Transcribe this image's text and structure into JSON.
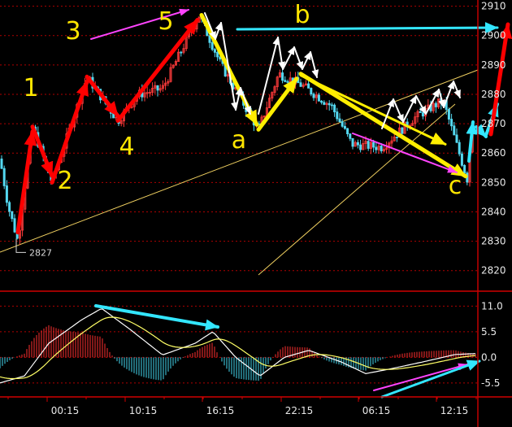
{
  "chart_data": [
    {
      "type": "candlestick",
      "panel": "price",
      "y_ticks": [
        2820,
        2830,
        2840,
        2850,
        2860,
        2870,
        2880,
        2890,
        2900,
        2910
      ],
      "y_tick_labels": [
        "2820",
        "2830",
        "2840",
        "2850",
        "2860",
        "2870",
        "2880",
        "2890",
        "2900",
        "2910"
      ],
      "ylim": [
        2813,
        2911
      ],
      "low_marker": {
        "value": 2827,
        "label": "2827"
      },
      "wave_labels": [
        "1",
        "2",
        "3",
        "4",
        "5",
        "a",
        "b",
        "c"
      ],
      "wave_points": [
        {
          "label": "1",
          "value": 2869
        },
        {
          "label": "2",
          "value": 2850
        },
        {
          "label": "3",
          "value": 2886
        },
        {
          "label": "4",
          "value": 2871
        },
        {
          "label": "5",
          "value": 2907
        },
        {
          "label": "a",
          "value": 2868
        },
        {
          "label": "b",
          "value": 2887
        },
        {
          "label": "c",
          "value": 2851
        }
      ],
      "colors": {
        "up": "#ff3b3b",
        "down": "#54d8f0",
        "grid": "#b00000",
        "wave_red": "#ff0000",
        "wave_yellow": "#ffee00",
        "arrow_white": "#ffffff",
        "arrow_magenta": "#ff44ff",
        "arrow_cyan": "#33e6ff",
        "trendline": "#f0d060"
      }
    },
    {
      "type": "macd",
      "panel": "indicator",
      "y_ticks": [
        11.0,
        5.5,
        0.0,
        -5.5
      ],
      "y_tick_labels": [
        "11.0",
        "5.5",
        "0.0",
        "-5.5"
      ],
      "ylim": [
        -8.5,
        13.5
      ],
      "colors": {
        "dif": "#ffffff",
        "dea": "#ffff66",
        "hist_pos": "#ff3030",
        "hist_neg": "#44d8f0"
      }
    }
  ],
  "x_ticks": [
    "00:15",
    "10:15",
    "16:15",
    "22:15",
    "06:15",
    "12:15"
  ]
}
